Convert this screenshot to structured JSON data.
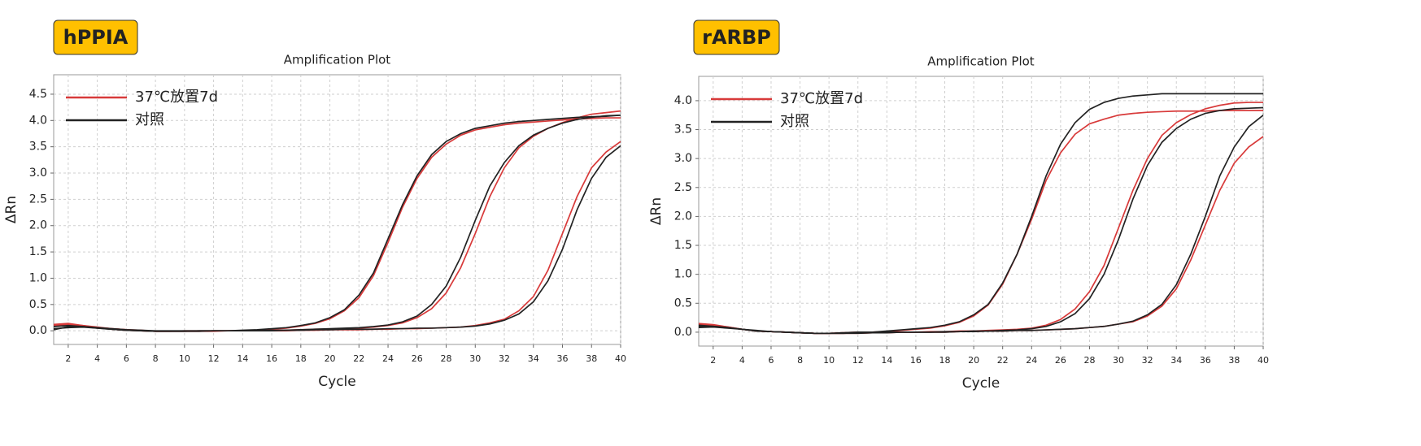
{
  "chart_data": [
    {
      "type": "line",
      "badge": "hPPIA",
      "title": "Amplification Plot",
      "xlabel": "Cycle",
      "ylabel": "ΔRn",
      "x": [
        1,
        2,
        3,
        4,
        5,
        6,
        7,
        8,
        9,
        10,
        11,
        12,
        13,
        14,
        15,
        16,
        17,
        18,
        19,
        20,
        21,
        22,
        23,
        24,
        25,
        26,
        27,
        28,
        29,
        30,
        31,
        32,
        33,
        34,
        35,
        36,
        37,
        38,
        39,
        40
      ],
      "xlim": [
        1,
        40
      ],
      "xticks": [
        2,
        4,
        6,
        8,
        10,
        12,
        14,
        16,
        18,
        20,
        22,
        24,
        26,
        28,
        30,
        32,
        34,
        36,
        38,
        40
      ],
      "ylim": [
        -0.26,
        4.87
      ],
      "yticks": [
        {
          "value": 0,
          "label": "0.0"
        },
        0.5,
        {
          "value": 1,
          "label": "1.0"
        },
        1.5,
        {
          "value": 2,
          "label": "2.0"
        },
        2.5,
        {
          "value": 3,
          "label": "3.0"
        },
        3.5,
        {
          "value": 4,
          "label": "4.0"
        },
        4.5
      ],
      "grid": true,
      "legend": "upper left",
      "series": [
        {
          "name": "37℃放置7d",
          "color": "#d83a3a",
          "values": [
            [
              0.12,
              0.14,
              0.1,
              0.06,
              0.04,
              0.02,
              0.01,
              -0.01,
              -0.01,
              0,
              0,
              0,
              0,
              0,
              0.01,
              0.03,
              0.05,
              0.09,
              0.14,
              0.23,
              0.38,
              0.63,
              1.05,
              1.68,
              2.35,
              2.9,
              3.3,
              3.55,
              3.72,
              3.82,
              3.87,
              3.92,
              3.95,
              3.97,
              3.99,
              4.01,
              4.03,
              4.04,
              4.05,
              4.05
            ],
            [
              0.1,
              0.12,
              0.09,
              0.06,
              0.03,
              0.01,
              0,
              -0.01,
              -0.01,
              -0.01,
              -0.01,
              0,
              0,
              0,
              0,
              0,
              0.01,
              0.02,
              0.03,
              0.03,
              0.04,
              0.05,
              0.07,
              0.1,
              0.15,
              0.25,
              0.42,
              0.72,
              1.2,
              1.85,
              2.55,
              3.1,
              3.48,
              3.7,
              3.85,
              3.96,
              4.05,
              4.12,
              4.15,
              4.18
            ],
            [
              0.1,
              0.12,
              0.1,
              0.07,
              0.04,
              0.02,
              0,
              -0.01,
              -0.01,
              -0.01,
              -0.01,
              -0.01,
              0,
              0,
              0,
              0,
              0,
              0.01,
              0.01,
              0.02,
              0.02,
              0.02,
              0.03,
              0.03,
              0.04,
              0.04,
              0.05,
              0.06,
              0.07,
              0.1,
              0.15,
              0.22,
              0.38,
              0.65,
              1.15,
              1.85,
              2.55,
              3.1,
              3.4,
              3.6
            ]
          ]
        },
        {
          "name": "对照",
          "color": "#222222",
          "values": [
            [
              0.02,
              0.08,
              0.08,
              0.06,
              0.04,
              0.02,
              0.01,
              0,
              0,
              0,
              0,
              0,
              0,
              0.01,
              0.02,
              0.04,
              0.06,
              0.1,
              0.15,
              0.25,
              0.4,
              0.68,
              1.1,
              1.75,
              2.4,
              2.95,
              3.35,
              3.6,
              3.75,
              3.85,
              3.9,
              3.95,
              3.98,
              4.0,
              4.02,
              4.04,
              4.06,
              4.07,
              4.08,
              4.1
            ],
            [
              0.08,
              0.1,
              0.08,
              0.05,
              0.03,
              0.01,
              0,
              -0.01,
              -0.01,
              -0.01,
              0,
              0,
              0,
              0,
              0,
              0.01,
              0.01,
              0.02,
              0.03,
              0.04,
              0.05,
              0.06,
              0.08,
              0.11,
              0.17,
              0.28,
              0.5,
              0.85,
              1.4,
              2.1,
              2.75,
              3.2,
              3.52,
              3.72,
              3.85,
              3.95,
              4.02,
              4.06,
              4.09,
              4.1
            ],
            [
              0.04,
              0.06,
              0.07,
              0.05,
              0.03,
              0.01,
              0,
              -0.01,
              -0.01,
              -0.01,
              -0.01,
              0,
              0,
              0,
              0,
              0,
              0.01,
              0.01,
              0.02,
              0.02,
              0.03,
              0.03,
              0.03,
              0.04,
              0.04,
              0.05,
              0.05,
              0.06,
              0.07,
              0.09,
              0.13,
              0.2,
              0.32,
              0.55,
              0.95,
              1.55,
              2.3,
              2.9,
              3.3,
              3.52
            ]
          ]
        }
      ]
    },
    {
      "type": "line",
      "badge": "rARBP",
      "title": "Amplification Plot",
      "xlabel": "Cycle",
      "ylabel": "ΔRn",
      "x": [
        1,
        2,
        3,
        4,
        5,
        6,
        7,
        8,
        9,
        10,
        11,
        12,
        13,
        14,
        15,
        16,
        17,
        18,
        19,
        20,
        21,
        22,
        23,
        24,
        25,
        26,
        27,
        28,
        29,
        30,
        31,
        32,
        33,
        34,
        35,
        36,
        37,
        38,
        39,
        40
      ],
      "xlim": [
        1,
        40
      ],
      "xticks": [
        2,
        4,
        6,
        8,
        10,
        12,
        14,
        16,
        18,
        20,
        22,
        24,
        26,
        28,
        30,
        32,
        34,
        36,
        38,
        40
      ],
      "ylim": [
        -0.24,
        4.42
      ],
      "yticks": [
        {
          "value": 0,
          "label": "0.0"
        },
        0.5,
        {
          "value": 1,
          "label": "1.0"
        },
        1.5,
        {
          "value": 2,
          "label": "2.0"
        },
        2.5,
        {
          "value": 3,
          "label": "3.0"
        },
        3.5,
        {
          "value": 4,
          "label": "4.0"
        }
      ],
      "grid": true,
      "legend": "upper left",
      "series": [
        {
          "name": "37℃放置7d",
          "color": "#d83a3a",
          "values": [
            [
              0.15,
              0.13,
              0.09,
              0.05,
              0.02,
              0.01,
              0,
              -0.01,
              -0.02,
              -0.02,
              -0.01,
              0,
              0,
              0.01,
              0.03,
              0.05,
              0.07,
              0.11,
              0.17,
              0.28,
              0.47,
              0.83,
              1.35,
              1.95,
              2.62,
              3.1,
              3.42,
              3.6,
              3.68,
              3.75,
              3.78,
              3.8,
              3.81,
              3.82,
              3.82,
              3.82,
              3.83,
              3.83,
              3.83,
              3.83
            ],
            [
              0.1,
              0.11,
              0.08,
              0.05,
              0.02,
              0.01,
              0,
              -0.01,
              -0.02,
              -0.02,
              -0.02,
              -0.01,
              -0.01,
              0,
              0,
              0,
              0.01,
              0.01,
              0.02,
              0.02,
              0.03,
              0.04,
              0.05,
              0.07,
              0.12,
              0.22,
              0.4,
              0.7,
              1.15,
              1.8,
              2.45,
              3.0,
              3.4,
              3.62,
              3.76,
              3.86,
              3.92,
              3.96,
              3.97,
              3.97
            ],
            [
              0.13,
              0.12,
              0.09,
              0.05,
              0.02,
              0.01,
              0,
              -0.01,
              -0.02,
              -0.02,
              -0.02,
              -0.02,
              -0.01,
              -0.01,
              0,
              0,
              0,
              0,
              0.01,
              0.01,
              0.02,
              0.02,
              0.03,
              0.03,
              0.04,
              0.05,
              0.06,
              0.08,
              0.1,
              0.14,
              0.18,
              0.28,
              0.45,
              0.75,
              1.25,
              1.85,
              2.45,
              2.92,
              3.2,
              3.38
            ]
          ]
        },
        {
          "name": "对照",
          "color": "#222222",
          "values": [
            [
              0.12,
              0.1,
              0.08,
              0.05,
              0.02,
              0.01,
              0,
              -0.01,
              -0.02,
              -0.02,
              -0.01,
              0,
              0,
              0.02,
              0.04,
              0.06,
              0.08,
              0.12,
              0.18,
              0.3,
              0.48,
              0.85,
              1.35,
              2.0,
              2.7,
              3.25,
              3.62,
              3.85,
              3.97,
              4.04,
              4.08,
              4.1,
              4.12,
              4.12,
              4.12,
              4.12,
              4.12,
              4.12,
              4.12,
              4.12
            ],
            [
              0.08,
              0.09,
              0.07,
              0.05,
              0.02,
              0.01,
              0,
              -0.01,
              -0.02,
              -0.02,
              -0.02,
              -0.01,
              -0.01,
              0,
              0,
              0,
              0,
              0.01,
              0.01,
              0.02,
              0.02,
              0.03,
              0.04,
              0.06,
              0.1,
              0.18,
              0.32,
              0.58,
              1.0,
              1.6,
              2.3,
              2.88,
              3.28,
              3.52,
              3.68,
              3.78,
              3.83,
              3.86,
              3.87,
              3.88
            ],
            [
              0.1,
              0.1,
              0.08,
              0.05,
              0.03,
              0.01,
              0,
              -0.01,
              -0.02,
              -0.02,
              -0.02,
              -0.02,
              -0.01,
              -0.01,
              0,
              0,
              0,
              0,
              0.01,
              0.01,
              0.02,
              0.02,
              0.03,
              0.03,
              0.04,
              0.05,
              0.06,
              0.08,
              0.1,
              0.14,
              0.19,
              0.3,
              0.48,
              0.82,
              1.35,
              2.0,
              2.7,
              3.2,
              3.55,
              3.75
            ]
          ]
        }
      ]
    }
  ]
}
